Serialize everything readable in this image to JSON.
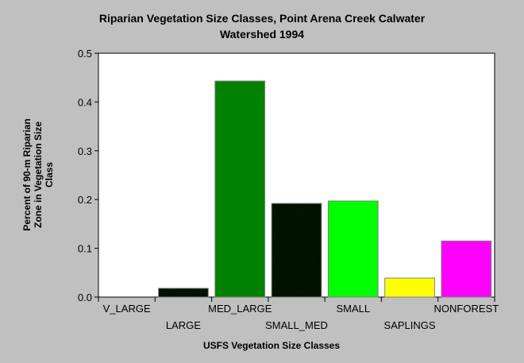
{
  "chart_data": {
    "type": "bar",
    "title_lines": [
      "Riparian Vegetation Size Classes, Point Arena Creek Calwater",
      "Watershed 1994"
    ],
    "xlabel": "USFS Vegetation Size Classes",
    "ylabel_lines": [
      "Percent of 90-m Riparian",
      "Zone in Vegetation Size",
      "Class"
    ],
    "categories": [
      "V_LARGE",
      "LARGE",
      "MED_LARGE",
      "SMALL_MED",
      "SMALL",
      "SAPLINGS",
      "NONFOREST"
    ],
    "values": [
      0.0,
      0.018,
      0.443,
      0.192,
      0.197,
      0.039,
      0.115
    ],
    "colors": [
      "#003300",
      "#005500",
      "#008000",
      "#009900",
      "#00ff00",
      "#ffff00",
      "#ff00ff"
    ],
    "patterned": [
      false,
      true,
      false,
      true,
      false,
      false,
      false
    ],
    "ylim": [
      0,
      0.5
    ],
    "yticks": [
      0.0,
      0.1,
      0.2,
      0.3,
      0.4,
      0.5
    ],
    "ytick_labels": [
      "0.0",
      "0.1",
      "0.2",
      "0.3",
      "0.4",
      "0.5"
    ],
    "grid": false,
    "legend": "none",
    "background": "#c0c0c0",
    "plot_background": "#ffffff"
  }
}
